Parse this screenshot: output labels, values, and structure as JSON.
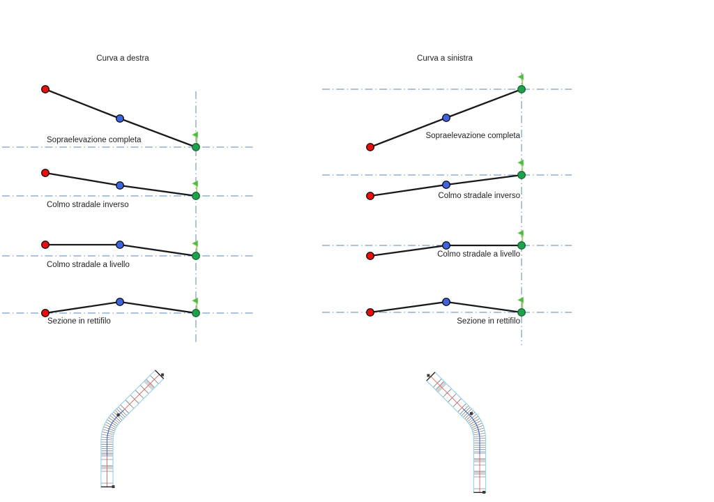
{
  "panels": [
    {
      "id": "destra",
      "title": "Curva a destra",
      "rows": [
        {
          "label": "Sopraelevazione completa",
          "offsets": [
            -83,
            -41,
            0
          ]
        },
        {
          "label": "Colmo stradale inverso",
          "offsets": [
            -33,
            -15,
            0
          ]
        },
        {
          "label": "Colmo stradale a livello",
          "offsets": [
            -16,
            -16,
            0
          ]
        },
        {
          "label": "Sezione in rettifilo",
          "offsets": [
            0,
            -16,
            0
          ]
        }
      ]
    },
    {
      "id": "sinistra",
      "title": "Curva a sinistra",
      "rows": [
        {
          "label": "Sopraelevazione completa",
          "offsets": [
            83,
            41,
            0
          ]
        },
        {
          "label": "Colmo stradale inverso",
          "offsets": [
            30,
            14,
            0
          ]
        },
        {
          "label": "Colmo stradale a livello",
          "offsets": [
            15,
            0,
            0
          ]
        },
        {
          "label": "Sezione in rettifilo",
          "offsets": [
            0,
            -15,
            0
          ]
        }
      ]
    }
  ],
  "markers": {
    "red": "outer-edge-point",
    "blue": "centerline-point",
    "green": "pivot-point-with-flag"
  },
  "roads": [
    {
      "name": "plan-view-road-curve-right"
    },
    {
      "name": "plan-view-road-curve-left"
    }
  ],
  "colors": {
    "segment": "#1a1a1a",
    "dashdot": "#5b87bb",
    "point_red": "#e90d0d",
    "point_blue": "#3d66dd",
    "point_green": "#1ca24c",
    "point_green_stroke": "#145c2c",
    "flag_pole": "#a4cf6e",
    "flag_fill": "#4db84e",
    "flag_edge": "#8ed95f",
    "road_edge": "#8ed2ea",
    "road_center_red": "#e06060",
    "road_center_blue": "#3b6fd4",
    "road_tick": "#4a4a4a",
    "road_band_gray": "#d4d4d4",
    "road_band_dark": "#8a8a8a",
    "road_end": "#222222",
    "road_marker": "#3c3c3c"
  }
}
